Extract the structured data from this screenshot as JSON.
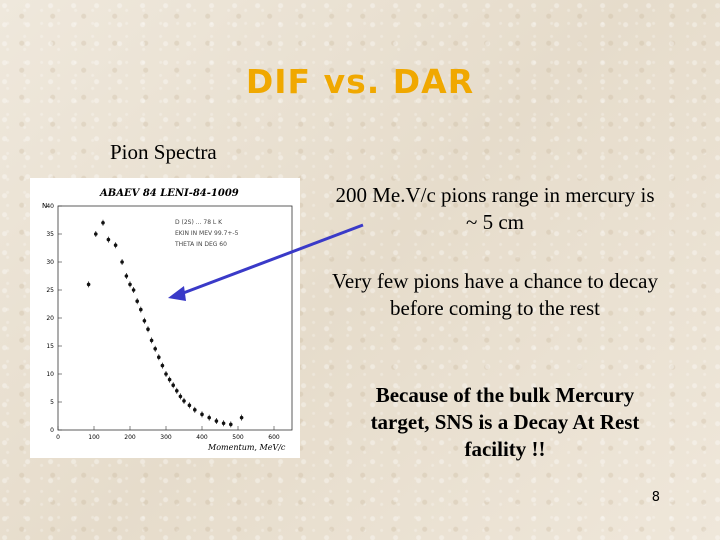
{
  "slide": {
    "title": "DIF vs. DAR",
    "subtitle": "Pion Spectra",
    "text1": "200 Me.V/c pions range in mercury is ~ 5 cm",
    "text2": "Very few pions have a chance to decay before coming to the rest",
    "text3": "Because of the bulk Mercury target, SNS is a Decay At Rest facility !!",
    "page_number": "8",
    "colors": {
      "title": "#f0a800",
      "arrow": "#3a3ac8"
    }
  },
  "chart_data": {
    "type": "scatter",
    "title": "ABAEV 84   LENI-84-1009",
    "xlabel": "Momentum, MeV/c",
    "ylabel": "N",
    "xlim": [
      0,
      650
    ],
    "ylim": [
      0,
      40
    ],
    "xticks": [
      "0",
      "100",
      "200",
      "300",
      "400",
      "500",
      "600"
    ],
    "yticks": [
      "0",
      "5",
      "10",
      "15",
      "20",
      "25",
      "30",
      "35",
      "40"
    ],
    "legend": [
      "D (2S) ... 78 L K",
      "EKIN IN MEV 99.7+-5",
      "THETA IN DEG 60"
    ],
    "x": [
      85,
      105,
      125,
      140,
      160,
      178,
      190,
      200,
      210,
      220,
      230,
      240,
      250,
      260,
      270,
      280,
      290,
      300,
      310,
      320,
      330,
      340,
      350,
      365,
      380,
      400,
      420,
      440,
      460,
      480,
      510
    ],
    "y": [
      26,
      35,
      37,
      34,
      33,
      30,
      27.5,
      26,
      25,
      23,
      21.5,
      19.5,
      18,
      16,
      14.5,
      13,
      11.5,
      10,
      9,
      8,
      7,
      6,
      5.2,
      4.4,
      3.6,
      2.8,
      2.2,
      1.6,
      1.2,
      1.0,
      2.2
    ]
  }
}
